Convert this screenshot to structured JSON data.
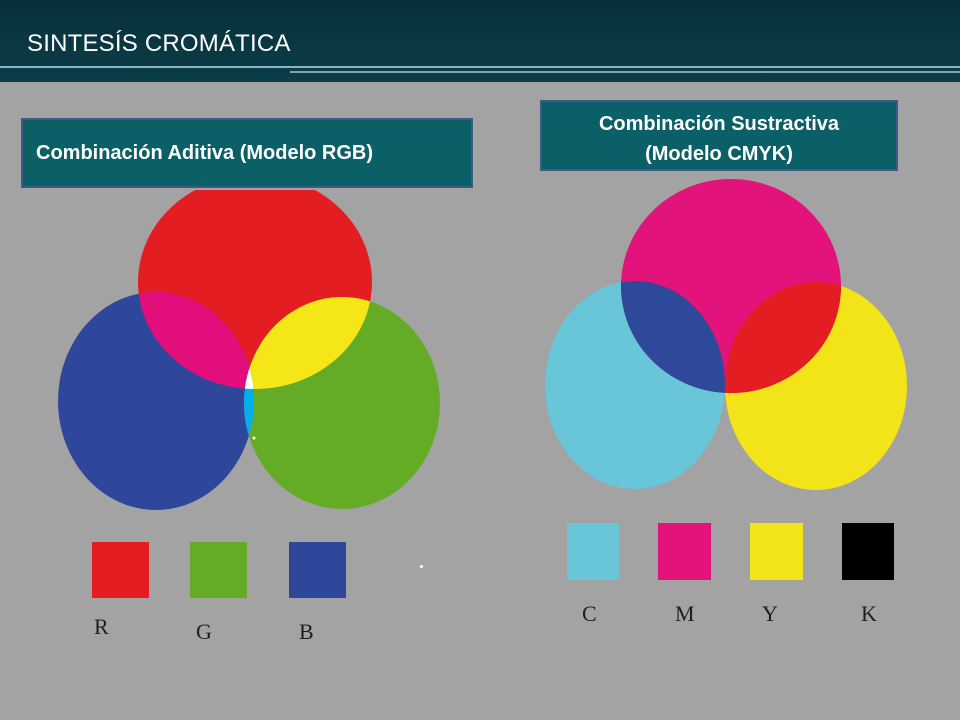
{
  "header": {
    "title": "SINTESÍS CROMÁTICA"
  },
  "additive": {
    "title": "Combinación Aditiva (Modelo RGB)",
    "swatches": [
      {
        "letter": "R",
        "color": "#e41d23"
      },
      {
        "letter": "G",
        "color": "#65ac26"
      },
      {
        "letter": "B",
        "color": "#2f479a"
      }
    ],
    "mix_colors": {
      "red_blue": "#e10e7c",
      "red_green": "#f4e617",
      "green_blue": "#02aeec",
      "all": "#ffffff"
    }
  },
  "subtractive": {
    "title_line1": "Combinación Sustractiva",
    "title_line2": "(Modelo CMYK)",
    "swatches": [
      {
        "letter": "C",
        "color": "#69c5d8"
      },
      {
        "letter": "M",
        "color": "#e2137b"
      },
      {
        "letter": "Y",
        "color": "#f3e41a"
      },
      {
        "letter": "K",
        "color": "#000000"
      }
    ],
    "mix_colors": {
      "magenta_cyan": "#2e489a",
      "magenta_yellow": "#e41d23",
      "cyan_yellow": "#ffffff",
      "all": "#000000"
    }
  }
}
